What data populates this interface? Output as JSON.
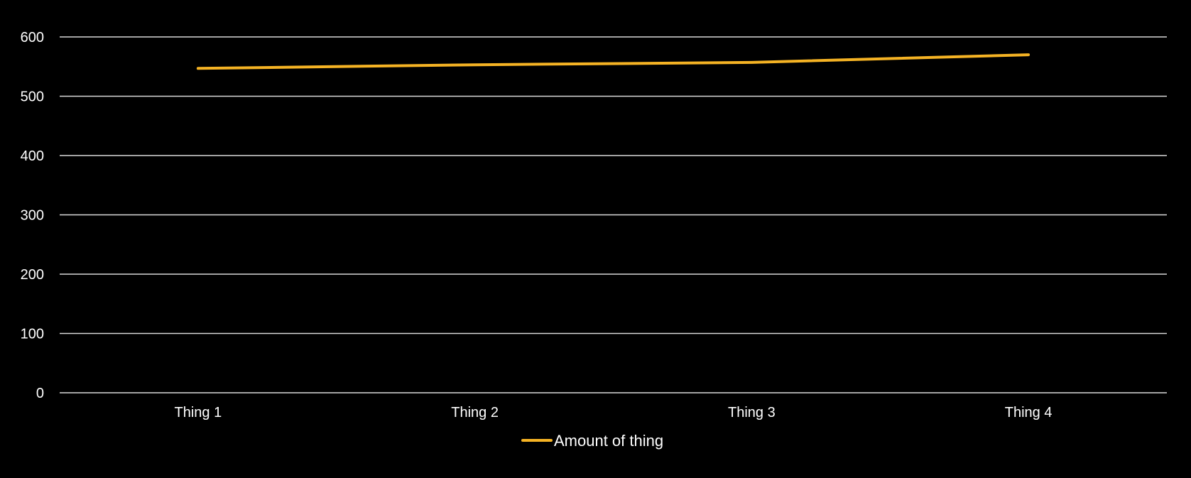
{
  "chart_data": {
    "type": "line",
    "categories": [
      "Thing 1",
      "Thing 2",
      "Thing 3",
      "Thing 4"
    ],
    "series": [
      {
        "name": "Amount of thing",
        "values": [
          547,
          553,
          557,
          570
        ],
        "color": "#f5b324"
      }
    ],
    "ylim": [
      0,
      600
    ],
    "yticks": [
      0,
      100,
      200,
      300,
      400,
      500,
      600
    ],
    "grid": true,
    "legend_position": "bottom",
    "background_color": "#000000",
    "text_color": "#ffffff",
    "grid_color": "#d9d9d9"
  }
}
